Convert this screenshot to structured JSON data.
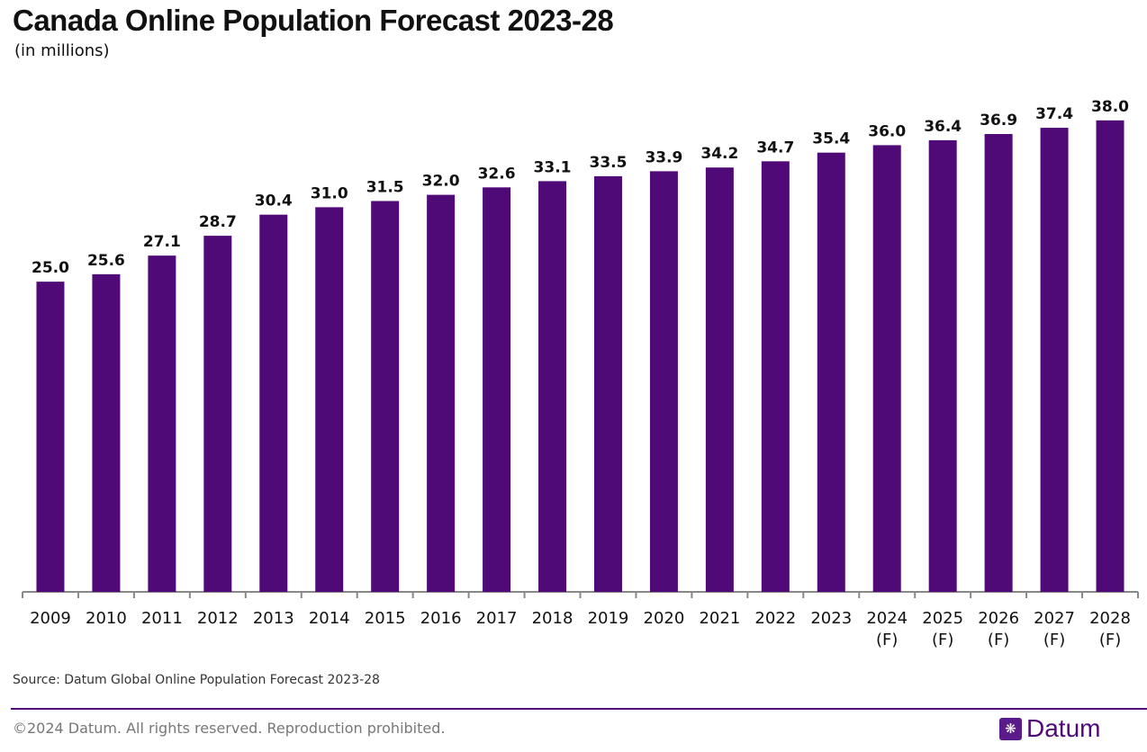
{
  "chart_data": {
    "type": "bar",
    "title": "Canada Online Population Forecast 2023-28",
    "subtitle": "(in millions)",
    "categories": [
      "2009",
      "2010",
      "2011",
      "2012",
      "2013",
      "2014",
      "2015",
      "2016",
      "2017",
      "2018",
      "2019",
      "2020",
      "2021",
      "2022",
      "2023",
      "2024\n(F)",
      "2025\n(F)",
      "2026\n(F)",
      "2027\n(F)",
      "2028\n(F)"
    ],
    "values": [
      25.0,
      25.6,
      27.1,
      28.7,
      30.4,
      31.0,
      31.5,
      32.0,
      32.6,
      33.1,
      33.5,
      33.9,
      34.2,
      34.7,
      35.4,
      36.0,
      36.4,
      36.9,
      37.4,
      38.0
    ],
    "xlabel": "",
    "ylabel": "",
    "ylim": [
      0,
      47.7
    ],
    "grid": false,
    "bar_color": "#4f0a78"
  },
  "source": "Source: Datum Global Online Population Forecast 2023-28",
  "footer": {
    "copyright": "©2024 Datum. All rights reserved. Reproduction prohibited.",
    "logo_text": "Datum"
  }
}
